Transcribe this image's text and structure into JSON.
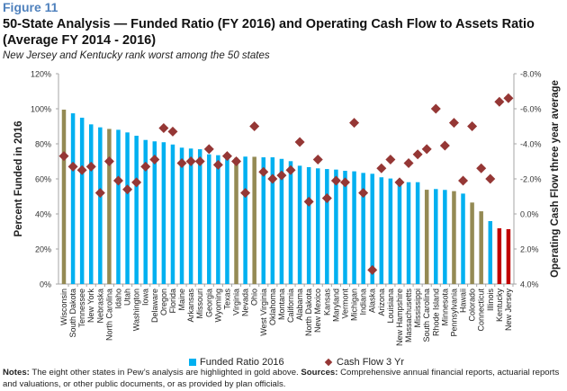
{
  "figure_label": "Figure 11",
  "title": "50-State Analysis — Funded Ratio (FY 2016) and Operating Cash Flow to Assets Ratio (Average FY 2014 - 2016)",
  "subtitle": "New Jersey and Kentucky rank worst among the 50 states",
  "notes": {
    "notes_label": "Notes:",
    "notes_text": " The eight other states in Pew’s analysis are highlighted in gold above. ",
    "sources_label": "Sources:",
    "sources_text": " Comprehensive annual financial reports, actuarial reports and valuations, or other public documents, or as provided by plan officials."
  },
  "colors": {
    "bar_default": "#00b0f0",
    "bar_highlight_gold": "#948a54",
    "bar_worst_red": "#c00000",
    "diamond": "#953735"
  },
  "chart_data": {
    "type": "bar",
    "title": "50-State Analysis — Funded Ratio (FY 2016) and Operating Cash Flow to Assets Ratio (Average FY 2014 - 2016)",
    "xlabel": "",
    "ylabel": "Percent Funded in 2016",
    "y2label": "Operating Cash Flow three year average",
    "ylim": [
      0,
      120
    ],
    "y2lim": [
      4.0,
      -8.0
    ],
    "yticks": [
      "0%",
      "20%",
      "40%",
      "60%",
      "80%",
      "100%",
      "120%"
    ],
    "y2ticks": [
      "4.0%",
      "2.0%",
      "0.0%",
      "-2.0%",
      "-4.0%",
      "-6.0%",
      "-8.0%"
    ],
    "grid": false,
    "legend_position": "bottom",
    "categories": [
      "Wisconsin",
      "South Dakota",
      "Tennessee",
      "New York",
      "Nebraska",
      "North Carolina",
      "Idaho",
      "Utah",
      "Washington",
      "Iowa",
      "Delaware",
      "Oregon",
      "Florida",
      "Maine",
      "Arkansas",
      "Missouri",
      "Georgia",
      "Wyoming",
      "Texas",
      "Virginia",
      "Nevada",
      "Ohio",
      "West Virginia",
      "Oklahoma",
      "Montana",
      "California",
      "Alabama",
      "North Dakota",
      "New Mexico",
      "Kansas",
      "Maryland",
      "Vermont",
      "Michigan",
      "Indiana",
      "Alaska",
      "Arizona",
      "Louisiana",
      "New Hampshire",
      "Massachusetts",
      "Mississippi",
      "South Carolina",
      "Rhode Island",
      "Minnesota",
      "Pennsylvania",
      "Hawaii",
      "Colorado",
      "Connecticut",
      "Illinois",
      "Kentucky",
      "New Jersey"
    ],
    "highlight": [
      "gold",
      "blue",
      "blue",
      "blue",
      "blue",
      "gold",
      "blue",
      "blue",
      "blue",
      "blue",
      "blue",
      "blue",
      "blue",
      "blue",
      "blue",
      "blue",
      "blue",
      "blue",
      "blue",
      "gold",
      "blue",
      "gold",
      "blue",
      "blue",
      "blue",
      "blue",
      "blue",
      "blue",
      "blue",
      "blue",
      "blue",
      "blue",
      "blue",
      "blue",
      "blue",
      "blue",
      "blue",
      "blue",
      "blue",
      "blue",
      "gold",
      "blue",
      "blue",
      "gold",
      "blue",
      "gold",
      "gold",
      "blue",
      "red",
      "red"
    ],
    "series": [
      {
        "name": "Funded Ratio 2016",
        "type": "bar",
        "axis": "left",
        "unit": "%",
        "values": [
          99.5,
          97.4,
          94.9,
          91.1,
          89.4,
          88.5,
          88.0,
          86.5,
          84.6,
          82.2,
          81.4,
          80.9,
          79.6,
          77.8,
          77.3,
          76.9,
          74.0,
          73.5,
          72.3,
          72.0,
          72.7,
          72.6,
          72.3,
          72.3,
          71.4,
          70.1,
          67.5,
          66.7,
          66.0,
          65.6,
          65.3,
          64.6,
          64.3,
          63.4,
          62.9,
          60.9,
          60.2,
          59.5,
          58.1,
          58.1,
          53.8,
          54.2,
          53.7,
          53.0,
          51.6,
          46.5,
          41.5,
          35.9,
          31.8,
          31.3
        ]
      },
      {
        "name": "Cash Flow 3 Yr",
        "type": "scatter",
        "axis": "right",
        "unit": "%",
        "values": [
          -3.3,
          -2.7,
          -2.5,
          -2.7,
          -1.2,
          -3.0,
          -1.9,
          -1.4,
          -1.8,
          -2.7,
          -3.1,
          -4.9,
          -4.7,
          -2.9,
          -3.0,
          -3.0,
          -3.7,
          -2.8,
          -3.3,
          -3.0,
          -1.2,
          -5.0,
          -2.4,
          -2.0,
          -2.2,
          -2.5,
          -4.1,
          -0.7,
          -3.1,
          -0.9,
          -1.9,
          -1.8,
          -5.2,
          -1.2,
          3.2,
          -2.6,
          -3.1,
          -1.8,
          -2.9,
          -3.4,
          -3.7,
          -6.0,
          -3.9,
          -5.2,
          -1.9,
          -5.0,
          -2.6,
          -2.0,
          -6.4,
          -6.6
        ]
      }
    ]
  },
  "legend": {
    "items": [
      {
        "label": "Funded Ratio 2016",
        "marker": "square"
      },
      {
        "label": "Cash Flow 3 Yr",
        "marker": "diamond"
      }
    ]
  }
}
